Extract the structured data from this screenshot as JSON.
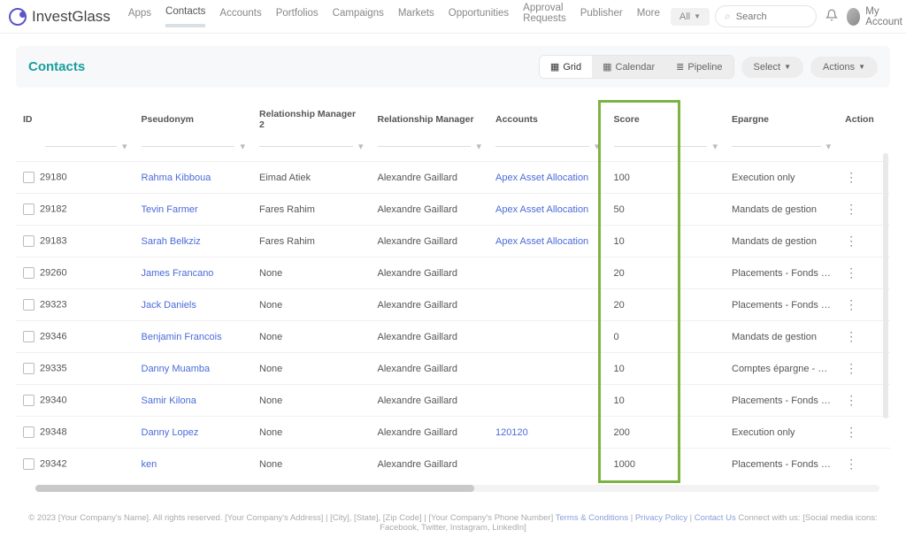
{
  "brand": "InvestGlass",
  "nav": {
    "items": [
      "Apps",
      "Contacts",
      "Accounts",
      "Portfolios",
      "Campaigns",
      "Markets",
      "Opportunities",
      "Approval Requests",
      "Publisher",
      "More"
    ],
    "active_index": 1,
    "filter_label": "All",
    "search_placeholder": "Search",
    "account_label": "My Account"
  },
  "page": {
    "title": "Contacts",
    "views": {
      "grid": "Grid",
      "calendar": "Calendar",
      "pipeline": "Pipeline",
      "active": "grid"
    },
    "select_label": "Select",
    "actions_label": "Actions"
  },
  "table": {
    "columns": [
      "ID",
      "Pseudonym",
      "Relationship Manager 2",
      "Relationship Manager",
      "Accounts",
      "Score",
      "Epargne",
      "Action"
    ],
    "highlight_col_index": 5,
    "rows": [
      {
        "id": "29180",
        "pseudonym": "Rahma Kibboua",
        "rm2": "Eimad Atiek",
        "rm": "Alexandre Gaillard",
        "account": "Apex Asset Allocation",
        "account_link": true,
        "score": "100",
        "epargne": "Execution only"
      },
      {
        "id": "29182",
        "pseudonym": "Tevin Farmer",
        "rm2": "Fares Rahim",
        "rm": "Alexandre Gaillard",
        "account": "Apex Asset Allocation",
        "account_link": true,
        "score": "50",
        "epargne": "Mandats de gestion"
      },
      {
        "id": "29183",
        "pseudonym": "Sarah Belkziz",
        "rm2": "Fares Rahim",
        "rm": "Alexandre Gaillard",
        "account": "Apex Asset Allocation",
        "account_link": true,
        "score": "10",
        "epargne": "Mandats de gestion"
      },
      {
        "id": "29260",
        "pseudonym": "James Francano",
        "rm2": "None",
        "rm": "Alexandre Gaillard",
        "account": "",
        "account_link": false,
        "score": "20",
        "epargne": "Placements - Fonds de pl..."
      },
      {
        "id": "29323",
        "pseudonym": "Jack Daniels",
        "rm2": "None",
        "rm": "Alexandre Gaillard",
        "account": "",
        "account_link": false,
        "score": "20",
        "epargne": "Placements - Fonds de pl..."
      },
      {
        "id": "29346",
        "pseudonym": "Benjamin Francois",
        "rm2": "None",
        "rm": "Alexandre Gaillard",
        "account": "",
        "account_link": false,
        "score": "0",
        "epargne": "Mandats de gestion"
      },
      {
        "id": "29335",
        "pseudonym": "Danny Muamba",
        "rm2": "None",
        "rm": "Alexandre Gaillard",
        "account": "",
        "account_link": false,
        "score": "10",
        "epargne": "Comptes épargne - CA Li..."
      },
      {
        "id": "29340",
        "pseudonym": "Samir Kilona",
        "rm2": "None",
        "rm": "Alexandre Gaillard",
        "account": "",
        "account_link": false,
        "score": "10",
        "epargne": "Placements - Fonds de pl..."
      },
      {
        "id": "29348",
        "pseudonym": "Danny Lopez",
        "rm2": "None",
        "rm": "Alexandre Gaillard",
        "account": "120120",
        "account_link": true,
        "score": "200",
        "epargne": "Execution only"
      },
      {
        "id": "29342",
        "pseudonym": "ken",
        "rm2": "None",
        "rm": "Alexandre Gaillard",
        "account": "",
        "account_link": false,
        "score": "1000",
        "epargne": "Placements - Fonds de pl..."
      }
    ]
  },
  "footer": {
    "text_left": "© 2023 [Your Company's Name]. All rights reserved. [Your Company's Address] | [City], [State], [Zip Code] | [Your Company's Phone Number] ",
    "links": [
      "Terms & Conditions",
      "Privacy Policy",
      "Contact Us"
    ],
    "text_right": " Connect with us: [Social media icons: Facebook, Twitter, Instagram, LinkedIn]"
  },
  "colors": {
    "highlight": "#7cb342",
    "link": "#4a6bdb",
    "title": "#1a9e9e"
  }
}
